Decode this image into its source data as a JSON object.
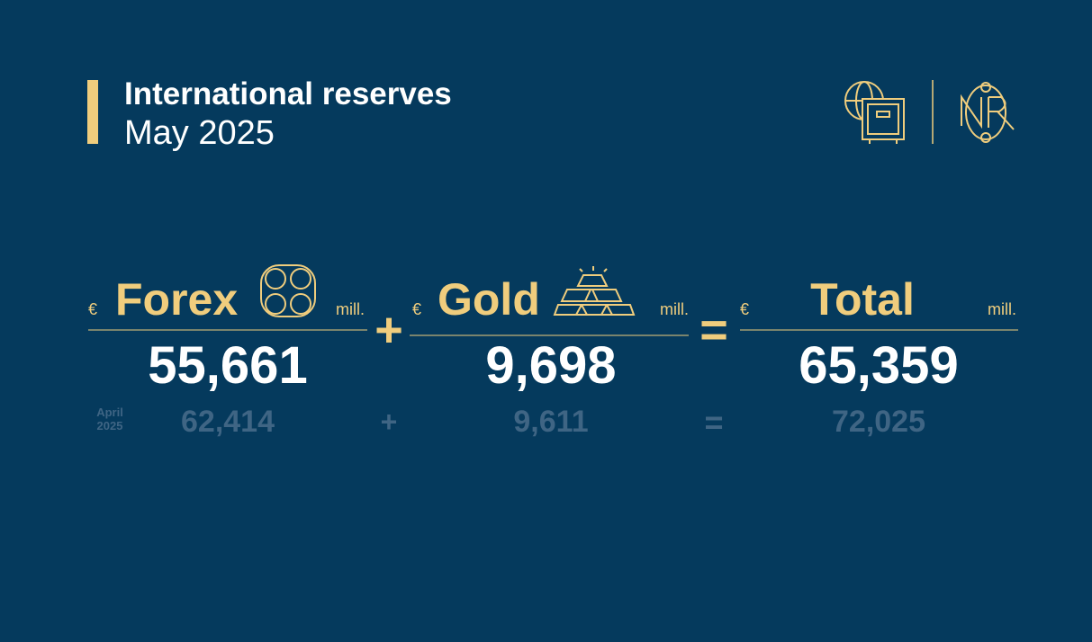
{
  "header": {
    "title": "International reserves",
    "subtitle": "May 2025"
  },
  "previous_label": {
    "month": "April",
    "year": "2025"
  },
  "columns": [
    {
      "currency": "€",
      "label": "Forex",
      "unit": "mill.",
      "current": "55,661",
      "previous": "62,414"
    },
    {
      "currency": "€",
      "label": "Gold",
      "unit": "mill.",
      "current": "9,698",
      "previous": "9,611"
    },
    {
      "currency": "€",
      "label": "Total",
      "unit": "mill.",
      "current": "65,359",
      "previous": "72,025"
    }
  ],
  "operators": [
    "+",
    "="
  ]
}
